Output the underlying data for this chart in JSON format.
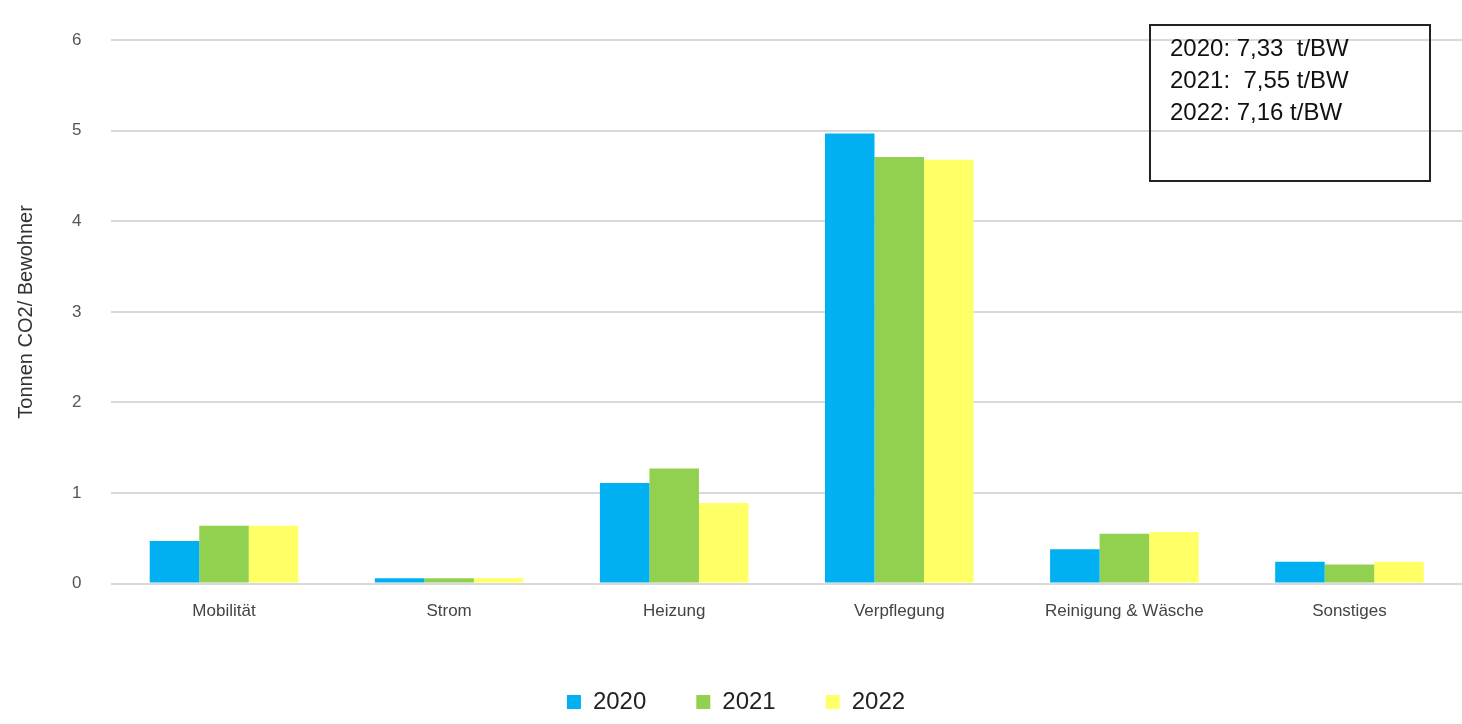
{
  "chart_data": {
    "type": "bar",
    "ylabel": "Tonnen CO2/ Bewohner",
    "categories": [
      "Mobilität",
      "Strom",
      "Heizung",
      "Verpflegung",
      "Reinigung & Wäsche",
      "Sonstiges"
    ],
    "series": [
      {
        "name": "2020",
        "color": "#00b0f0",
        "values": [
          0.47,
          0.06,
          1.11,
          4.97,
          0.38,
          0.24
        ]
      },
      {
        "name": "2021",
        "color": "#92d050",
        "values": [
          0.64,
          0.06,
          1.27,
          4.71,
          0.55,
          0.21
        ]
      },
      {
        "name": "2022",
        "color": "#ffff66",
        "values": [
          0.64,
          0.06,
          0.89,
          4.68,
          0.57,
          0.24
        ]
      }
    ],
    "ylim": [
      0,
      6
    ],
    "yticks": [
      0,
      1,
      2,
      3,
      4,
      5,
      6
    ],
    "grid": "y",
    "legend": "bottom",
    "annotations": [
      "2020: 7,33  t/BW",
      "2021:  7,55 t/BW",
      "2022: 7,16 t/BW"
    ]
  }
}
